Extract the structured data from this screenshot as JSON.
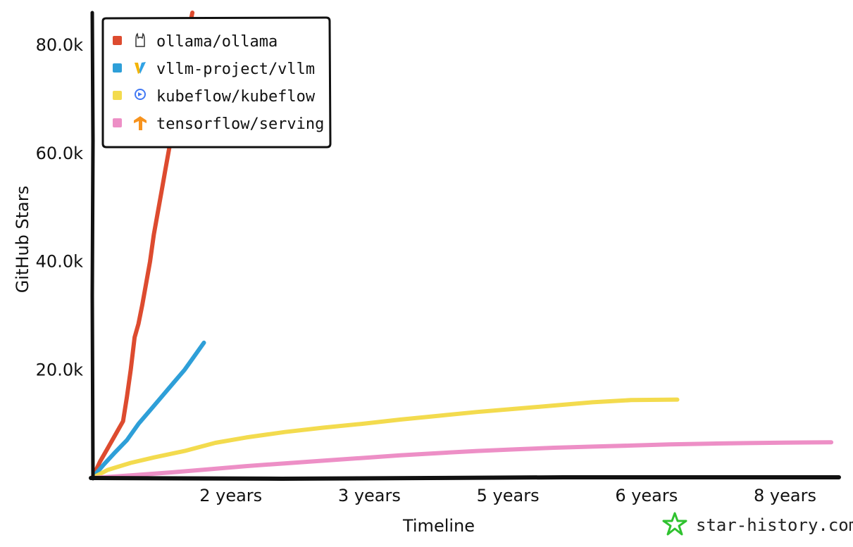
{
  "chart_data": {
    "type": "line",
    "title": "",
    "xlabel": "Timeline",
    "ylabel": "GitHub Stars",
    "ylim": [
      0,
      86000
    ],
    "xlim": [
      0,
      9.7
    ],
    "y_ticks": [
      {
        "value": 20000,
        "label": "20.0k"
      },
      {
        "value": 40000,
        "label": "40.0k"
      },
      {
        "value": 60000,
        "label": "60.0k"
      },
      {
        "value": 80000,
        "label": "80.0k"
      }
    ],
    "x_ticks": [
      {
        "value": 1.8,
        "label": "2 years"
      },
      {
        "value": 3.6,
        "label": "3 years"
      },
      {
        "value": 5.4,
        "label": "5 years"
      },
      {
        "value": 7.2,
        "label": "6 years"
      },
      {
        "value": 9.0,
        "label": "8 years"
      }
    ],
    "legend_position": "top-left",
    "series": [
      {
        "name": "ollama/ollama",
        "color": "#dd4b2f",
        "icon": "ollama-llama-icon",
        "points": [
          [
            0,
            0
          ],
          [
            0.1,
            3000
          ],
          [
            0.2,
            5500
          ],
          [
            0.3,
            8000
          ],
          [
            0.4,
            10500
          ],
          [
            0.45,
            15000
          ],
          [
            0.5,
            20000
          ],
          [
            0.55,
            26000
          ],
          [
            0.6,
            28500
          ],
          [
            0.65,
            32000
          ],
          [
            0.7,
            36000
          ],
          [
            0.75,
            40000
          ],
          [
            0.8,
            45000
          ],
          [
            0.85,
            49000
          ],
          [
            0.9,
            53000
          ],
          [
            0.95,
            57000
          ],
          [
            1.0,
            61000
          ],
          [
            1.05,
            65000
          ],
          [
            1.1,
            69000
          ],
          [
            1.15,
            74000
          ],
          [
            1.2,
            79000
          ],
          [
            1.3,
            86000
          ]
        ]
      },
      {
        "name": "vllm-project/vllm",
        "color": "#2e9fd8",
        "icon": "vllm-v-icon",
        "points": [
          [
            0,
            0
          ],
          [
            0.15,
            2500
          ],
          [
            0.3,
            4800
          ],
          [
            0.45,
            7000
          ],
          [
            0.6,
            10000
          ],
          [
            0.75,
            12500
          ],
          [
            0.9,
            15000
          ],
          [
            1.05,
            17500
          ],
          [
            1.2,
            20000
          ],
          [
            1.3,
            22000
          ],
          [
            1.45,
            25000
          ]
        ]
      },
      {
        "name": "kubeflow/kubeflow",
        "color": "#f3db4e",
        "icon": "kubeflow-icon",
        "points": [
          [
            0,
            0
          ],
          [
            0.2,
            1500
          ],
          [
            0.5,
            2800
          ],
          [
            0.8,
            3800
          ],
          [
            1.2,
            5000
          ],
          [
            1.6,
            6500
          ],
          [
            2.0,
            7500
          ],
          [
            2.5,
            8500
          ],
          [
            3.0,
            9300
          ],
          [
            3.5,
            10000
          ],
          [
            4.0,
            10800
          ],
          [
            4.5,
            11500
          ],
          [
            5.0,
            12200
          ],
          [
            5.5,
            12800
          ],
          [
            6.0,
            13400
          ],
          [
            6.5,
            14000
          ],
          [
            7.0,
            14400
          ],
          [
            7.6,
            14500
          ]
        ]
      },
      {
        "name": "tensorflow/serving",
        "color": "#ed8fc6",
        "icon": "tensorflow-icon",
        "points": [
          [
            0,
            0
          ],
          [
            0.5,
            500
          ],
          [
            1.0,
            1000
          ],
          [
            1.5,
            1600
          ],
          [
            2.0,
            2200
          ],
          [
            2.5,
            2700
          ],
          [
            3.0,
            3200
          ],
          [
            3.5,
            3700
          ],
          [
            4.0,
            4200
          ],
          [
            4.5,
            4600
          ],
          [
            5.0,
            5000
          ],
          [
            5.5,
            5300
          ],
          [
            6.0,
            5600
          ],
          [
            6.5,
            5800
          ],
          [
            7.0,
            6000
          ],
          [
            7.5,
            6200
          ],
          [
            8.0,
            6350
          ],
          [
            8.5,
            6450
          ],
          [
            9.0,
            6550
          ],
          [
            9.6,
            6600
          ]
        ]
      }
    ]
  },
  "watermark": {
    "text": "star-history.com",
    "icon": "star-history-logo-icon",
    "color": "#2fc22f"
  }
}
